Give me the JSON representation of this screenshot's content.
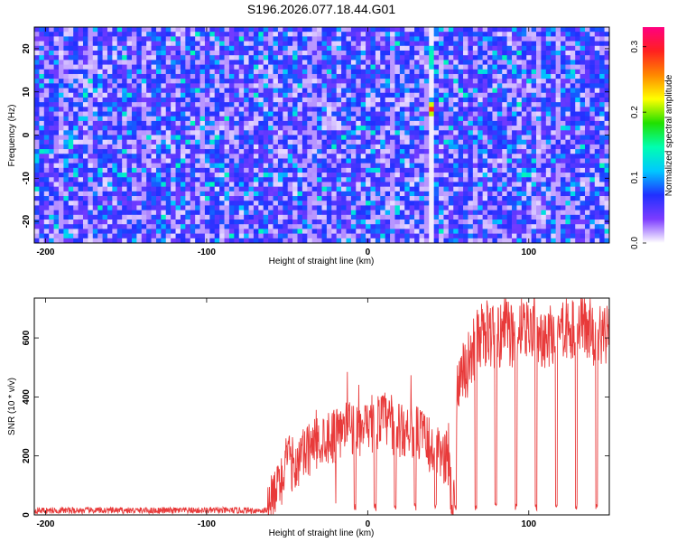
{
  "title": "S196.2026.077.18.44.G01",
  "colors": {
    "snr_line": "#e83a3a",
    "frame": "#000000",
    "colormap": [
      "#ffffff",
      "#7c3cff",
      "#2030ff",
      "#00c8ff",
      "#00ffb0",
      "#20e000",
      "#ffff00",
      "#ff8800",
      "#ff2020",
      "#ff0080"
    ]
  },
  "chart_data": [
    {
      "type": "heatmap",
      "xlabel": "Height of straight line (km)",
      "ylabel": "Frequency (Hz)",
      "xlim": [
        -207,
        150
      ],
      "ylim": [
        -25,
        25
      ],
      "xticks": [
        -200,
        -100,
        0,
        100
      ],
      "yticks": [
        -20,
        -10,
        0,
        10,
        20
      ],
      "colorbar": {
        "label": "Normalized spectral amplitude",
        "range": [
          0,
          0.33
        ],
        "ticks": [
          0.0,
          0.1,
          0.2,
          0.3
        ]
      },
      "features": {
        "vertical_clear_band_km": 41,
        "peak": {
          "x": 40,
          "y": 6,
          "value": 0.33
        },
        "secondary": {
          "x": 40,
          "y": 18,
          "value": 0.12
        }
      },
      "grid": false,
      "legend": "none"
    },
    {
      "type": "line",
      "xlabel": "Height of straight line (km)",
      "ylabel": "SNR (10 * v/v)",
      "xlim": [
        -207,
        150
      ],
      "ylim": [
        0,
        735
      ],
      "xticks": [
        -200,
        -100,
        0,
        100
      ],
      "yticks": [
        0,
        200,
        400,
        600
      ],
      "grid": false,
      "legend": "none",
      "series": [
        {
          "x": [
            -207,
            -180,
            -150,
            -120,
            -90,
            -70,
            -62,
            -55,
            -50,
            -45,
            -40,
            -35,
            -30,
            -25,
            -20,
            -15,
            -10,
            -5,
            0,
            5,
            10,
            15,
            20,
            25,
            30,
            35,
            40,
            45,
            50,
            53,
            55,
            60,
            65,
            70,
            75,
            80,
            85,
            90,
            95,
            100,
            105,
            110,
            115,
            120,
            125,
            130,
            135,
            140,
            145,
            150
          ],
          "values": [
            15,
            15,
            15,
            15,
            15,
            15,
            15,
            100,
            180,
            170,
            200,
            230,
            250,
            270,
            270,
            290,
            300,
            290,
            280,
            310,
            330,
            300,
            280,
            300,
            280,
            260,
            220,
            200,
            190,
            20,
            400,
            480,
            550,
            600,
            620,
            600,
            630,
            610,
            630,
            630,
            640,
            600,
            620,
            630,
            640,
            650,
            640,
            620,
            600,
            620
          ]
        }
      ]
    }
  ]
}
